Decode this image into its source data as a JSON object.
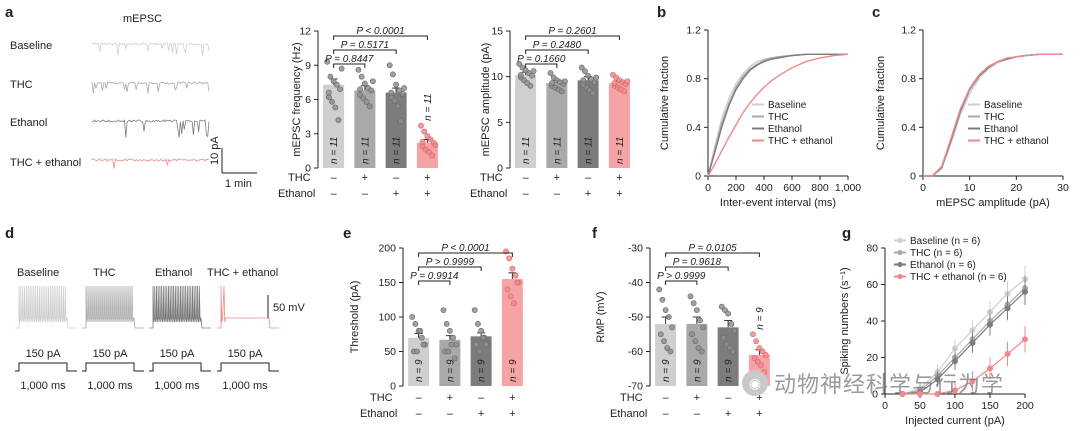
{
  "panel_labels": {
    "a": "a",
    "b": "b",
    "c": "c",
    "d": "d",
    "e": "e",
    "f": "f",
    "g": "g"
  },
  "colors": {
    "baseline": "#cfcfcf",
    "thc": "#a9a9a9",
    "ethanol": "#7c7c7c",
    "thc_ethanol": "#f0888b",
    "thc_ethanol_bar": "#f6a3a5"
  },
  "panel_a": {
    "traces_title": "mEPSC",
    "trace_labels": [
      "Baseline",
      "THC",
      "Ethanol",
      "THC + ethanol"
    ],
    "scale_v": "10 pA",
    "scale_t": "1 min"
  },
  "panel_d": {
    "trace_labels": [
      "Baseline",
      "THC",
      "Ethanol",
      "THC + ethanol"
    ],
    "scale_v": "50 mV",
    "step_current": "150 pA",
    "step_duration": "1,000 ms"
  },
  "factor_rows": {
    "thc_label": "THC",
    "ethanol_label": "Ethanol",
    "thc": [
      "–",
      "+",
      "–",
      "+"
    ],
    "ethanol": [
      "–",
      "–",
      "+",
      "+"
    ]
  },
  "watermark": "动物神经科学与行为学",
  "chart_data": [
    {
      "id": "a-frequency",
      "type": "bar",
      "ylabel": "mEPSC frequency (Hz)",
      "ylim": [
        0,
        12
      ],
      "yticks": [
        0,
        3,
        6,
        9,
        12
      ],
      "categories": [
        "Baseline",
        "THC",
        "Ethanol",
        "THC + ethanol"
      ],
      "values": [
        7.3,
        6.8,
        6.6,
        2.2
      ],
      "errors": [
        0.5,
        0.4,
        0.4,
        0.3
      ],
      "n_labels": [
        "n = 11",
        "n = 11",
        "n = 11",
        "n = 11"
      ],
      "points": [
        [
          9.3,
          8.0,
          7.6,
          7.3,
          6.9,
          6.2,
          5.8,
          5.3,
          4.2,
          8.7,
          6.6
        ],
        [
          8.6,
          8.0,
          7.4,
          7.0,
          6.8,
          6.4,
          6.1,
          5.8,
          5.4,
          7.6,
          6.9
        ],
        [
          9.0,
          8.2,
          7.3,
          6.8,
          6.5,
          6.2,
          5.9,
          5.4,
          4.1,
          7.0,
          6.6
        ],
        [
          3.7,
          3.2,
          2.8,
          2.5,
          2.2,
          1.9,
          1.6,
          1.4,
          1.1,
          2.0,
          2.3
        ]
      ],
      "comparisons": [
        {
          "from": 0,
          "to": 1,
          "p": "P = 0.8447"
        },
        {
          "from": 0,
          "to": 2,
          "p": "P = 0.5171"
        },
        {
          "from": 0,
          "to": 3,
          "p": "P < 0.0001"
        }
      ]
    },
    {
      "id": "a-amplitude",
      "type": "bar",
      "ylabel": "mEPSC amplitude (pA)",
      "ylim": [
        0,
        15
      ],
      "yticks": [
        0,
        5,
        10,
        15
      ],
      "categories": [
        "Baseline",
        "THC",
        "Ethanol",
        "THC + ethanol"
      ],
      "values": [
        10.2,
        9.3,
        9.6,
        9.3
      ],
      "errors": [
        0.3,
        0.3,
        0.4,
        0.2
      ],
      "n_labels": [
        "n = 11",
        "n = 11",
        "n = 11",
        "n = 11"
      ],
      "points": [
        [
          11.4,
          11.0,
          10.7,
          10.4,
          10.1,
          9.9,
          9.6,
          9.3,
          9.0,
          10.6,
          10.2
        ],
        [
          10.4,
          9.9,
          9.6,
          9.4,
          9.2,
          9.0,
          8.8,
          8.6,
          8.4,
          9.5,
          9.3
        ],
        [
          11.0,
          10.6,
          10.1,
          9.7,
          9.4,
          9.1,
          8.8,
          8.5,
          8.2,
          9.9,
          9.6
        ],
        [
          10.2,
          9.9,
          9.6,
          9.4,
          9.2,
          9.0,
          8.8,
          8.6,
          8.4,
          9.5,
          9.3
        ]
      ],
      "comparisons": [
        {
          "from": 0,
          "to": 1,
          "p": "P = 0.1660"
        },
        {
          "from": 0,
          "to": 2,
          "p": "P = 0.2480"
        },
        {
          "from": 0,
          "to": 3,
          "p": "P = 0.2601"
        }
      ]
    },
    {
      "id": "b-ecdf",
      "type": "line",
      "xlabel": "Inter-event interval (ms)",
      "ylabel": "Cumulative fraction",
      "xlim": [
        0,
        1000
      ],
      "ylim": [
        0,
        1.2
      ],
      "xticks": [
        0,
        200,
        400,
        600,
        800,
        1000
      ],
      "xtick_labels": [
        "0",
        "200",
        "400",
        "600",
        "800",
        "1,000"
      ],
      "yticks": [
        0,
        0.4,
        0.8,
        1.2
      ],
      "ytick_labels": [
        "0",
        "0.4",
        "0.8",
        "1.2"
      ],
      "x": [
        0,
        50,
        100,
        150,
        200,
        250,
        300,
        350,
        400,
        450,
        500,
        600,
        700,
        800,
        900,
        1000
      ],
      "series": [
        {
          "name": "Baseline",
          "values": [
            0,
            0.25,
            0.48,
            0.64,
            0.76,
            0.84,
            0.9,
            0.94,
            0.96,
            0.97,
            0.98,
            0.99,
            1.0,
            1.0,
            1.0,
            1.0
          ]
        },
        {
          "name": "THC",
          "values": [
            0,
            0.22,
            0.44,
            0.6,
            0.73,
            0.82,
            0.88,
            0.92,
            0.95,
            0.97,
            0.98,
            0.99,
            1.0,
            1.0,
            1.0,
            1.0
          ]
        },
        {
          "name": "Ethanol",
          "values": [
            0,
            0.2,
            0.41,
            0.58,
            0.71,
            0.8,
            0.87,
            0.91,
            0.94,
            0.96,
            0.97,
            0.99,
            1.0,
            1.0,
            1.0,
            1.0
          ]
        },
        {
          "name": "THC + ethanol",
          "values": [
            0,
            0.1,
            0.21,
            0.32,
            0.42,
            0.52,
            0.6,
            0.67,
            0.73,
            0.78,
            0.82,
            0.89,
            0.94,
            0.97,
            0.99,
            1.0
          ]
        }
      ]
    },
    {
      "id": "c-ecdf",
      "type": "line",
      "xlabel": "mEPSC amplitude (pA)",
      "ylabel": "Cumulative fraction",
      "xlim": [
        0,
        30
      ],
      "ylim": [
        0,
        1.2
      ],
      "xticks": [
        0,
        10,
        20,
        30
      ],
      "xtick_labels": [
        "0",
        "10",
        "20",
        "30"
      ],
      "yticks": [
        0,
        0.4,
        0.8,
        1.2
      ],
      "ytick_labels": [
        "0",
        "0.4",
        "0.8",
        "1.2"
      ],
      "x": [
        0,
        2,
        4,
        6,
        8,
        10,
        12,
        14,
        16,
        18,
        20,
        22,
        25,
        30
      ],
      "series": [
        {
          "name": "Baseline",
          "values": [
            0,
            0.0,
            0.06,
            0.27,
            0.5,
            0.68,
            0.8,
            0.88,
            0.93,
            0.96,
            0.98,
            0.99,
            1.0,
            1.0
          ]
        },
        {
          "name": "THC",
          "values": [
            0,
            0.0,
            0.07,
            0.3,
            0.54,
            0.72,
            0.83,
            0.9,
            0.94,
            0.97,
            0.98,
            0.99,
            1.0,
            1.0
          ]
        },
        {
          "name": "Ethanol",
          "values": [
            0,
            0.0,
            0.07,
            0.29,
            0.53,
            0.71,
            0.82,
            0.89,
            0.94,
            0.96,
            0.98,
            0.99,
            1.0,
            1.0
          ]
        },
        {
          "name": "THC + ethanol",
          "values": [
            0,
            0.0,
            0.08,
            0.31,
            0.55,
            0.72,
            0.83,
            0.9,
            0.94,
            0.97,
            0.98,
            0.99,
            1.0,
            1.0
          ]
        }
      ]
    },
    {
      "id": "e-threshold",
      "type": "bar",
      "ylabel": "Threshold (pA)",
      "ylim": [
        0,
        200
      ],
      "yticks": [
        0,
        50,
        100,
        150,
        200
      ],
      "categories": [
        "Baseline",
        "THC",
        "Ethanol",
        "THC + ethanol"
      ],
      "values": [
        70,
        67,
        72,
        155
      ],
      "errors": [
        6,
        6,
        5,
        9
      ],
      "n_labels": [
        "n = 9",
        "n = 9",
        "n = 9",
        "n = 9"
      ],
      "points": [
        [
          100,
          90,
          80,
          70,
          60,
          50,
          50,
          80,
          60
        ],
        [
          110,
          90,
          80,
          70,
          60,
          50,
          50,
          60,
          40
        ],
        [
          110,
          90,
          80,
          70,
          60,
          60,
          50,
          70,
          60
        ],
        [
          195,
          185,
          170,
          160,
          150,
          140,
          130,
          120,
          150
        ]
      ],
      "comparisons": [
        {
          "from": 0,
          "to": 1,
          "p": "P = 0.9914"
        },
        {
          "from": 0,
          "to": 2,
          "p": "P > 0.9999"
        },
        {
          "from": 0,
          "to": 3,
          "p": "P < 0.0001"
        }
      ]
    },
    {
      "id": "f-rmp",
      "type": "bar",
      "ylabel": "RMP (mV)",
      "ylim": [
        -70,
        -30
      ],
      "yticks": [
        -70,
        -60,
        -50,
        -40,
        -30
      ],
      "baseline": -70,
      "categories": [
        "Baseline",
        "THC",
        "Ethanol",
        "THC + ethanol"
      ],
      "values": [
        -52,
        -52,
        -53,
        -61
      ],
      "errors": [
        2,
        2,
        2,
        1.5
      ],
      "n_labels": [
        "n = 9",
        "n = 9",
        "n = 9",
        "n = 9"
      ],
      "points": [
        [
          -42,
          -45,
          -48,
          -50,
          -53,
          -55,
          -57,
          -59,
          -60
        ],
        [
          -44,
          -46,
          -48,
          -51,
          -53,
          -55,
          -57,
          -59,
          -60
        ],
        [
          -47,
          -48,
          -49,
          -52,
          -54,
          -56,
          -58,
          -59,
          -60
        ],
        [
          -55,
          -57,
          -59,
          -60,
          -61,
          -62,
          -63,
          -64,
          -66
        ]
      ],
      "comparisons": [
        {
          "from": 0,
          "to": 1,
          "p": "P > 0.9999"
        },
        {
          "from": 0,
          "to": 2,
          "p": "P = 0.9618"
        },
        {
          "from": 0,
          "to": 3,
          "p": "P = 0.0105"
        }
      ]
    },
    {
      "id": "g-fi",
      "type": "line",
      "xlabel": "Injected current (pA)",
      "ylabel": "Spiking numbers (s⁻¹)",
      "xlim": [
        0,
        200
      ],
      "ylim": [
        0,
        80
      ],
      "xticks": [
        0,
        50,
        100,
        150,
        200
      ],
      "yticks": [
        0,
        20,
        40,
        60,
        80
      ],
      "x": [
        25,
        50,
        75,
        100,
        125,
        150,
        175,
        200
      ],
      "series": [
        {
          "name": "Baseline (n = 6)",
          "values": [
            0,
            3,
            12,
            25,
            35,
            45,
            55,
            63
          ]
        },
        {
          "name": "THC (n = 6)",
          "values": [
            0,
            2,
            10,
            20,
            30,
            40,
            49,
            58
          ]
        },
        {
          "name": "Ethanol (n = 6)",
          "values": [
            0,
            1,
            8,
            18,
            28,
            38,
            47,
            56
          ]
        },
        {
          "name": "THC + ethanol (n = 6)",
          "values": [
            0,
            0,
            0,
            2,
            7,
            14,
            22,
            30
          ]
        }
      ]
    }
  ]
}
